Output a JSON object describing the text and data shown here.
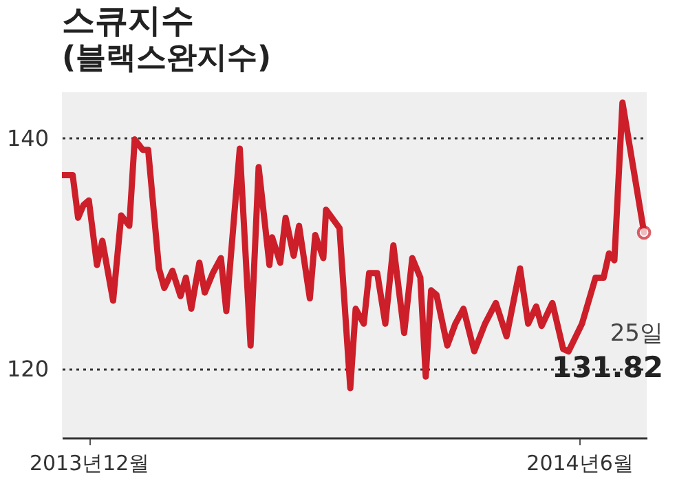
{
  "chart_data": {
    "type": "line",
    "title": "스큐지수",
    "subtitle": "(블랙스완지수)",
    "x": [
      "2013-11-21",
      "2013-11-25",
      "2013-11-27",
      "2013-11-29",
      "2013-12-01",
      "2013-12-04",
      "2013-12-06",
      "2013-12-10",
      "2013-12-13",
      "2013-12-16",
      "2013-12-18",
      "2013-12-21",
      "2013-12-23",
      "2013-12-27",
      "2013-12-29",
      "2014-01-01",
      "2014-01-04",
      "2014-01-06",
      "2014-01-08",
      "2014-01-11",
      "2014-01-13",
      "2014-01-16",
      "2014-01-19",
      "2014-01-21",
      "2014-01-26",
      "2014-01-30",
      "2014-02-02",
      "2014-02-06",
      "2014-02-07",
      "2014-02-10",
      "2014-02-12",
      "2014-02-15",
      "2014-02-17",
      "2014-02-21",
      "2014-02-23",
      "2014-02-26",
      "2014-02-27",
      "2014-03-04",
      "2014-03-08",
      "2014-03-10",
      "2014-03-13",
      "2014-03-15",
      "2014-03-18",
      "2014-03-21",
      "2014-03-24",
      "2014-03-28",
      "2014-03-31",
      "2014-04-03",
      "2014-04-05",
      "2014-04-07",
      "2014-04-09",
      "2014-04-13",
      "2014-04-16",
      "2014-04-19",
      "2014-04-23",
      "2014-04-27",
      "2014-05-01",
      "2014-05-05",
      "2014-05-10",
      "2014-05-13",
      "2014-05-16",
      "2014-05-18",
      "2014-05-22",
      "2014-05-26",
      "2014-05-28",
      "2014-06-02",
      "2014-06-07",
      "2014-06-10",
      "2014-06-12",
      "2014-06-14",
      "2014-06-17",
      "2014-06-25"
    ],
    "series": [
      {
        "color": "#cc1f2a",
        "values": [
          136.8,
          136.8,
          133.1,
          134.2,
          134.6,
          129.0,
          131.1,
          125.9,
          133.3,
          132.4,
          139.9,
          139.0,
          139.0,
          128.7,
          127.0,
          128.5,
          126.3,
          127.9,
          125.2,
          129.2,
          126.6,
          128.3,
          129.6,
          125.0,
          139.1,
          122.0,
          137.5,
          129.0,
          131.4,
          129.2,
          133.1,
          129.8,
          132.4,
          126.1,
          131.6,
          129.6,
          133.8,
          132.2,
          118.3,
          125.2,
          123.9,
          128.3,
          128.3,
          123.9,
          130.7,
          123.1,
          129.6,
          127.9,
          119.3,
          126.8,
          126.4,
          122.0,
          123.9,
          125.2,
          121.5,
          123.9,
          125.7,
          122.8,
          128.7,
          123.9,
          125.4,
          123.7,
          125.7,
          121.7,
          121.5,
          123.9,
          127.9,
          127.9,
          130.0,
          129.4,
          143.1,
          131.82
        ]
      }
    ],
    "xlim": [
      "2013-11-21",
      "2014-06-26"
    ],
    "ylim": [
      114,
      144
    ],
    "xticks": [
      {
        "value": "2013-12-01",
        "label": "2013년12월"
      },
      {
        "value": "2014-06-01",
        "label": "2014년6월"
      }
    ],
    "yticks": [
      120,
      140
    ],
    "grid": "y",
    "annotations": [
      "25일",
      "131.82"
    ]
  }
}
